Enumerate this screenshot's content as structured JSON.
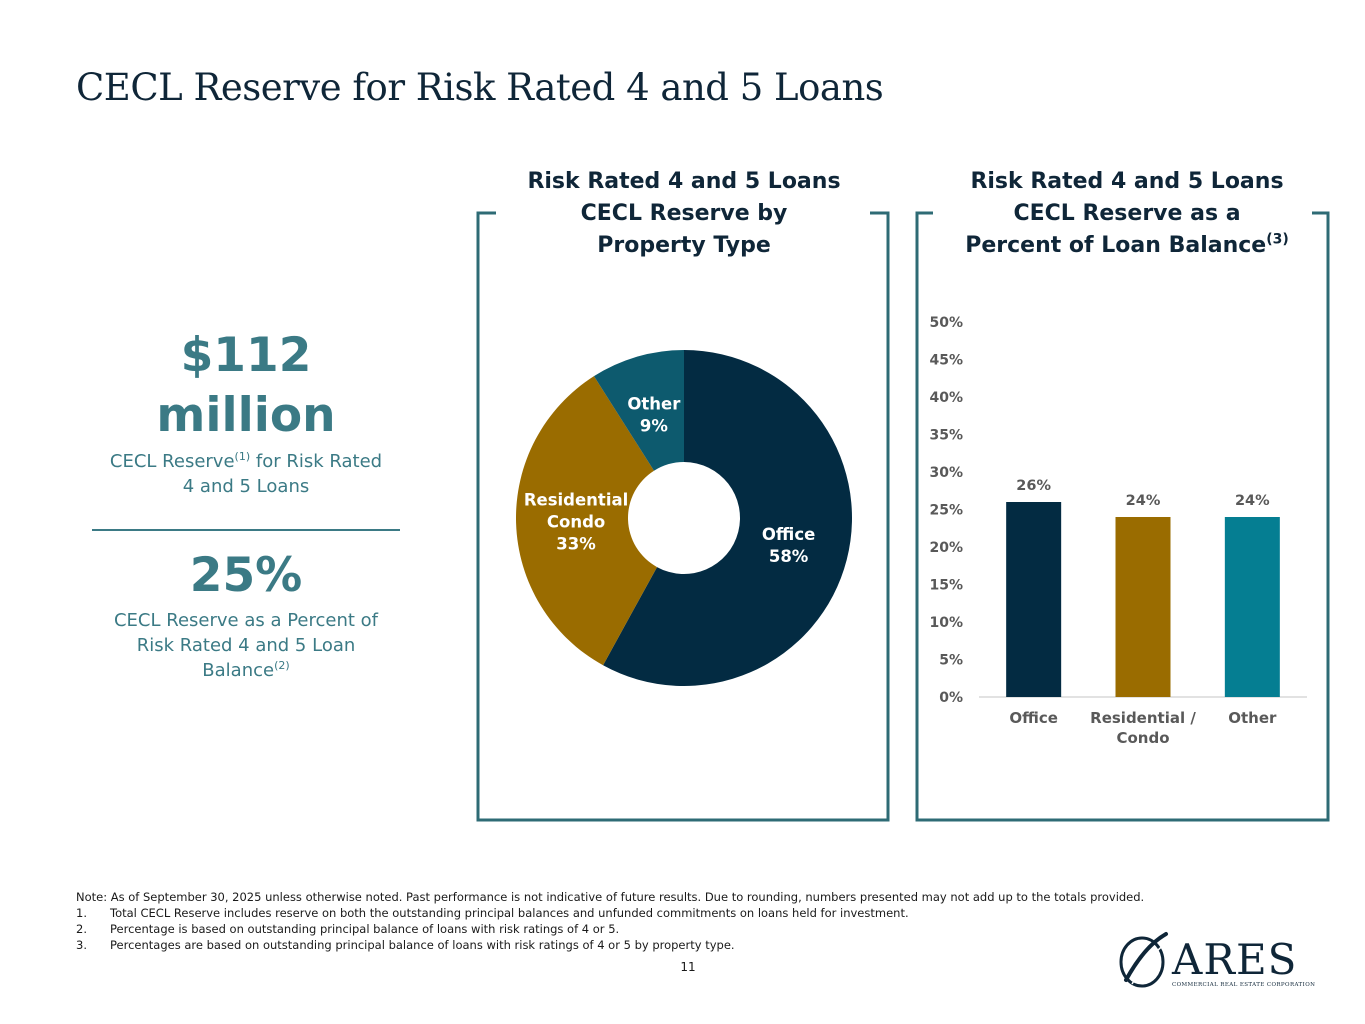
{
  "page": {
    "title": "CECL Reserve for Risk Rated 4 and 5 Loans",
    "page_number": "11"
  },
  "kpis": {
    "reserve_amount_line1": "$112",
    "reserve_amount_line2": "million",
    "reserve_label_a": "CECL Reserve",
    "reserve_label_sup": "(1)",
    "reserve_label_b": " for Risk Rated",
    "reserve_label_c": "4 and 5 Loans",
    "percent_value": "25%",
    "percent_label_a": "CECL Reserve as a Percent of",
    "percent_label_b": "Risk Rated 4 and 5 Loan",
    "percent_label_c": "Balance",
    "percent_label_sup": "(2)"
  },
  "panels": {
    "donut_title_1": "Risk Rated 4 and 5 Loans",
    "donut_title_2": "CECL Reserve by",
    "donut_title_3": "Property Type",
    "bar_title_1": "Risk Rated 4 and 5 Loans",
    "bar_title_2": "CECL Reserve as a",
    "bar_title_3": "Percent of Loan Balance",
    "bar_title_sup": "(3)"
  },
  "colors": {
    "navy": "#032b42",
    "gold": "#9a6c00",
    "teal_dark": "#0d5a6e",
    "teal_bar": "#057e92",
    "accent_text": "#3b7a85",
    "frame": "#2e6b75"
  },
  "chart_data": [
    {
      "type": "pie",
      "title": "Risk Rated 4 and 5 Loans CECL Reserve by Property Type",
      "slices": [
        {
          "label_lines": [
            "Office",
            "58%"
          ],
          "value": 58,
          "color": "#032b42"
        },
        {
          "label_lines": [
            "Residential",
            "Condo",
            "33%"
          ],
          "value": 33,
          "color": "#9a6c00"
        },
        {
          "label_lines": [
            "Other",
            "9%"
          ],
          "value": 9,
          "color": "#0d5a6e"
        }
      ]
    },
    {
      "type": "bar",
      "title": "Risk Rated 4 and 5 Loans CECL Reserve as a Percent of Loan Balance",
      "category_lines": [
        [
          "Office"
        ],
        [
          "Residential /",
          "Condo"
        ],
        [
          "Other"
        ]
      ],
      "values": [
        26,
        24,
        24
      ],
      "value_labels": [
        "26%",
        "24%",
        "24%"
      ],
      "colors": [
        "#032b42",
        "#9a6c00",
        "#057e92"
      ],
      "ylim": [
        0,
        50
      ],
      "yticks": [
        "0%",
        "5%",
        "10%",
        "15%",
        "20%",
        "25%",
        "30%",
        "35%",
        "40%",
        "45%",
        "50%"
      ],
      "grid": false
    }
  ],
  "notes": {
    "note": "Note: As of September 30, 2025 unless otherwise noted. Past performance is not indicative of future results. Due to rounding, numbers presented may not add up to the totals provided.",
    "items": [
      {
        "num": "1.",
        "text": "Total CECL Reserve includes reserve on both the outstanding principal balances and unfunded commitments on loans held for investment."
      },
      {
        "num": "2.",
        "text": "Percentage is based on outstanding principal balance of loans with risk ratings of 4 or 5."
      },
      {
        "num": "3.",
        "text": "Percentages are based on outstanding principal balance of loans with risk ratings of 4 or 5 by property type."
      }
    ]
  },
  "logo": {
    "wordmark": "ARES",
    "tagline": "COMMERCIAL REAL ESTATE CORPORATION"
  }
}
